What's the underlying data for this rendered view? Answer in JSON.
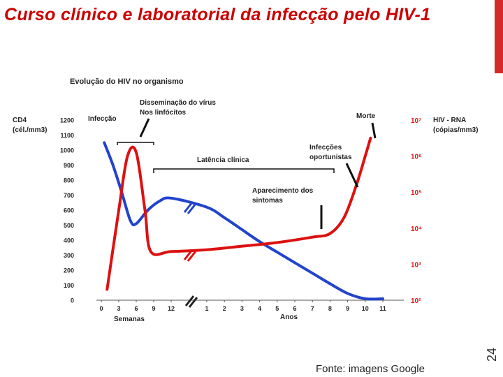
{
  "slide": {
    "title": "Curso clínico e laboratorial da infecção pelo HIV-1",
    "page_number": "24",
    "source": "Fonte: imagens Google"
  },
  "chart_data": {
    "type": "line",
    "title": "Evolução do HIV no organismo",
    "y_left": {
      "label_line1": "CD4",
      "label_line2": "(cél./mm3)",
      "ticks": [
        "0",
        "100",
        "200",
        "300",
        "400",
        "500",
        "600",
        "700",
        "800",
        "900",
        "1000",
        "1100",
        "1200"
      ],
      "range": [
        0,
        1200
      ]
    },
    "y_right": {
      "label_line1": "HIV - RNA",
      "label_line2": "(cópias/mm3)",
      "ticks": [
        "10²",
        "10³",
        "10⁴",
        "10⁵",
        "10⁶",
        "10⁷"
      ],
      "range_log10": [
        2,
        7
      ]
    },
    "x": {
      "segment1_label": "Semanas",
      "segment1_ticks": [
        "0",
        "3",
        "6",
        "9",
        "12"
      ],
      "segment2_label": "Anos",
      "segment2_ticks": [
        "1",
        "2",
        "3",
        "4",
        "5",
        "6",
        "7",
        "8",
        "9",
        "10",
        "11"
      ]
    },
    "series": [
      {
        "key": "cd4",
        "color": "#2244cc",
        "points": [
          {
            "seg": "weeks",
            "x": 0.5,
            "y": 1050
          },
          {
            "seg": "weeks",
            "x": 2,
            "y": 900
          },
          {
            "seg": "weeks",
            "x": 3.5,
            "y": 720
          },
          {
            "seg": "weeks",
            "x": 5,
            "y": 530
          },
          {
            "seg": "weeks",
            "x": 6,
            "y": 510
          },
          {
            "seg": "weeks",
            "x": 8,
            "y": 600
          },
          {
            "seg": "weeks",
            "x": 10,
            "y": 660
          },
          {
            "seg": "weeks",
            "x": 12,
            "y": 680
          },
          {
            "seg": "years",
            "x": 1,
            "y": 620
          },
          {
            "seg": "years",
            "x": 2,
            "y": 550
          },
          {
            "seg": "years",
            "x": 3,
            "y": 470
          },
          {
            "seg": "years",
            "x": 4,
            "y": 390
          },
          {
            "seg": "years",
            "x": 5,
            "y": 320
          },
          {
            "seg": "years",
            "x": 6,
            "y": 250
          },
          {
            "seg": "years",
            "x": 7,
            "y": 180
          },
          {
            "seg": "years",
            "x": 8,
            "y": 110
          },
          {
            "seg": "years",
            "x": 9,
            "y": 45
          },
          {
            "seg": "years",
            "x": 10,
            "y": 10
          },
          {
            "seg": "years",
            "x": 11,
            "y": 10
          }
        ]
      },
      {
        "key": "hiv_rna",
        "color": "#dd1111",
        "points": [
          {
            "seg": "weeks",
            "x": 1,
            "y_log10": 2.3
          },
          {
            "seg": "weeks",
            "x": 3,
            "y_log10": 4.5
          },
          {
            "seg": "weeks",
            "x": 4.5,
            "y_log10": 6.0
          },
          {
            "seg": "weeks",
            "x": 6,
            "y_log10": 6.1
          },
          {
            "seg": "weeks",
            "x": 7.5,
            "y_log10": 4.5
          },
          {
            "seg": "weeks",
            "x": 8.5,
            "y_log10": 3.35
          },
          {
            "seg": "weeks",
            "x": 12,
            "y_log10": 3.35
          },
          {
            "seg": "years",
            "x": 1,
            "y_log10": 3.4
          },
          {
            "seg": "years",
            "x": 3,
            "y_log10": 3.5
          },
          {
            "seg": "years",
            "x": 5,
            "y_log10": 3.6
          },
          {
            "seg": "years",
            "x": 7,
            "y_log10": 3.75
          },
          {
            "seg": "years",
            "x": 8,
            "y_log10": 3.85
          },
          {
            "seg": "years",
            "x": 8.8,
            "y_log10": 4.3
          },
          {
            "seg": "years",
            "x": 9.5,
            "y_log10": 5.2
          },
          {
            "seg": "years",
            "x": 10,
            "y_log10": 6.0
          },
          {
            "seg": "years",
            "x": 10.3,
            "y_log10": 6.5
          }
        ]
      }
    ],
    "annotations": {
      "infection": "Infecção",
      "dissemination_line1": "Disseminação do vírus",
      "dissemination_line2": "Nos linfócitos",
      "death": "Morte",
      "latency": "Latência clínica",
      "opportunistic_line1": "Infecções",
      "opportunistic_line2": "oportunistas",
      "symptoms_line1": "Aparecimento dos",
      "symptoms_line2": "sintomas"
    },
    "grid": false
  }
}
